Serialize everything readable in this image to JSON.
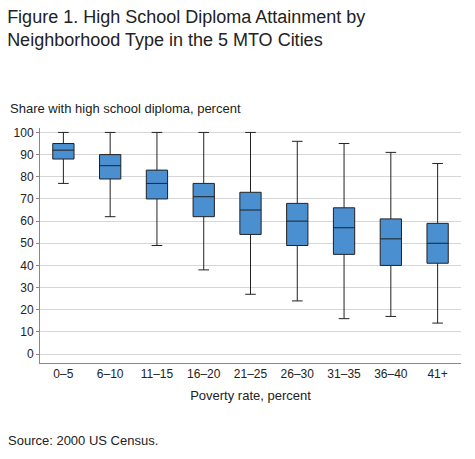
{
  "chart_data": {
    "type": "box",
    "title": "Figure 1. High School Diploma Attainment by Neighborhood Type in the 5 MTO Cities",
    "y_label": "Share with high school diploma, percent",
    "x_label": "Poverty rate, percent",
    "source": "Source: 2000 US Census.",
    "categories": [
      "0–5",
      "6–10",
      "11–15",
      "16–20",
      "21–25",
      "26–30",
      "31–35",
      "36–40",
      "41+"
    ],
    "min": [
      77,
      62,
      49,
      38,
      27,
      24,
      16,
      17,
      14
    ],
    "q1": [
      88,
      79,
      70,
      62,
      54,
      49,
      45,
      40,
      41
    ],
    "median": [
      92,
      85,
      77,
      71,
      65,
      60,
      57,
      52,
      50
    ],
    "q3": [
      95,
      90,
      83,
      77,
      73,
      68,
      66,
      61,
      59
    ],
    "max": [
      100,
      100,
      100,
      100,
      100,
      96,
      95,
      91,
      86
    ],
    "color": "#4a8fcf",
    "ylim": [
      -4,
      102
    ],
    "yticks": [
      0,
      10,
      20,
      30,
      40,
      50,
      60,
      70,
      80,
      90,
      100
    ],
    "grid": true
  }
}
